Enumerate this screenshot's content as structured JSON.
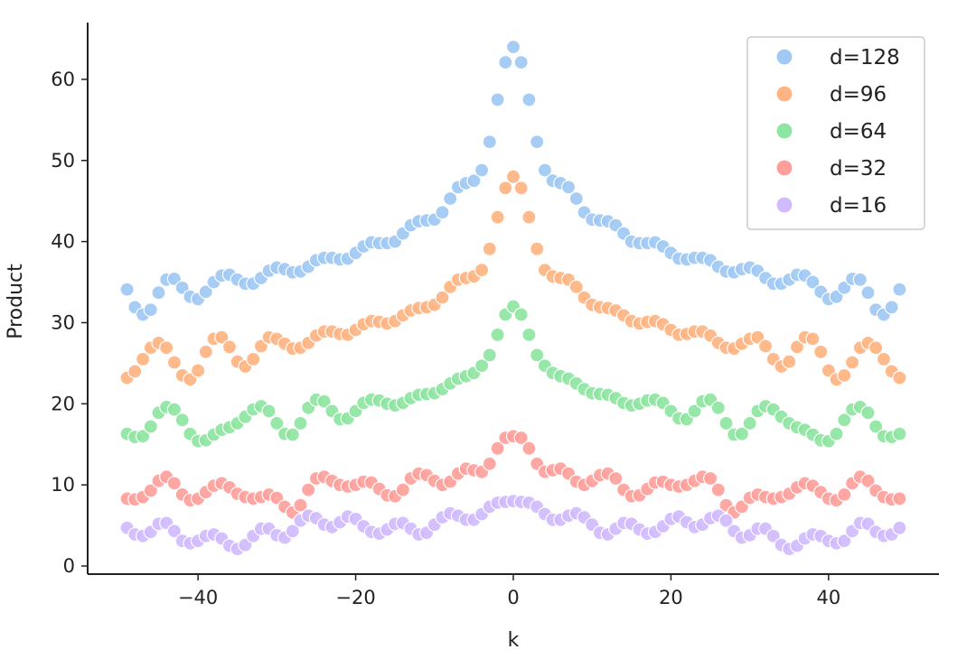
{
  "chart_data": {
    "type": "scatter",
    "title": "",
    "xlabel": "k",
    "ylabel": "Product",
    "xlim": [
      -54,
      54
    ],
    "ylim": [
      -1,
      67
    ],
    "xticks": [
      -40,
      -20,
      0,
      20,
      40
    ],
    "yticks": [
      0,
      10,
      20,
      30,
      40,
      50,
      60
    ],
    "grid": false,
    "legend_position": "top-right",
    "spines": "left-bottom",
    "x": [
      -49,
      -48,
      -47,
      -46,
      -45,
      -44,
      -43,
      -42,
      -41,
      -40,
      -39,
      -38,
      -37,
      -36,
      -35,
      -34,
      -33,
      -32,
      -31,
      -30,
      -29,
      -28,
      -27,
      -26,
      -25,
      -24,
      -23,
      -22,
      -21,
      -20,
      -19,
      -18,
      -17,
      -16,
      -15,
      -14,
      -13,
      -12,
      -11,
      -10,
      -9,
      -8,
      -7,
      -6,
      -5,
      -4,
      -3,
      -2,
      -1,
      0,
      1,
      2,
      3,
      4,
      5,
      6,
      7,
      8,
      9,
      10,
      11,
      12,
      13,
      14,
      15,
      16,
      17,
      18,
      19,
      20,
      21,
      22,
      23,
      24,
      25,
      26,
      27,
      28,
      29,
      30,
      31,
      32,
      33,
      34,
      35,
      36,
      37,
      38,
      39,
      40,
      41,
      42,
      43,
      44,
      45,
      46,
      47,
      48,
      49
    ],
    "series": [
      {
        "name": "d=128",
        "color": "#a1c9f4",
        "values": [
          34.1,
          31.9,
          31.0,
          31.6,
          33.7,
          35.3,
          35.4,
          34.3,
          33.2,
          32.9,
          33.8,
          35.0,
          35.8,
          35.9,
          35.3,
          34.8,
          34.8,
          35.5,
          36.4,
          36.8,
          36.6,
          36.2,
          36.3,
          36.9,
          37.7,
          38.0,
          38.0,
          37.8,
          37.9,
          38.6,
          39.4,
          39.9,
          39.8,
          39.8,
          40.0,
          41.0,
          42.0,
          42.5,
          42.6,
          42.7,
          43.6,
          45.3,
          46.7,
          47.2,
          47.5,
          48.8,
          52.3,
          57.5,
          62.1,
          64.0,
          62.1,
          57.5,
          52.3,
          48.8,
          47.5,
          47.2,
          46.7,
          45.3,
          43.6,
          42.7,
          42.6,
          42.5,
          42.0,
          41.0,
          40.0,
          39.8,
          39.8,
          39.9,
          39.4,
          38.6,
          37.9,
          37.8,
          38.0,
          38.0,
          37.7,
          36.9,
          36.3,
          36.2,
          36.6,
          36.8,
          36.4,
          35.5,
          34.8,
          34.8,
          35.3,
          35.9,
          35.8,
          35.0,
          33.8,
          32.9,
          33.2,
          34.3,
          35.4,
          35.3,
          33.7,
          31.6,
          31.0,
          31.9,
          34.1
        ]
      },
      {
        "name": "d=96",
        "color": "#ffb482",
        "values": [
          23.2,
          24.0,
          25.5,
          26.9,
          27.5,
          26.9,
          25.1,
          23.5,
          23.0,
          24.1,
          26.4,
          28.0,
          28.2,
          27.0,
          25.2,
          24.6,
          25.5,
          27.1,
          28.2,
          28.0,
          27.4,
          26.8,
          26.9,
          27.5,
          28.4,
          28.9,
          28.9,
          28.6,
          28.5,
          29.1,
          29.8,
          30.2,
          30.1,
          29.9,
          30.2,
          30.9,
          31.5,
          31.8,
          31.9,
          32.2,
          33.1,
          34.4,
          35.3,
          35.5,
          35.7,
          36.5,
          39.1,
          43.0,
          46.6,
          48.0,
          46.6,
          43.0,
          39.1,
          36.5,
          35.7,
          35.5,
          35.3,
          34.4,
          33.1,
          32.2,
          31.9,
          31.8,
          31.5,
          30.9,
          30.2,
          29.9,
          30.1,
          30.2,
          29.8,
          29.1,
          28.5,
          28.6,
          28.9,
          28.9,
          28.4,
          27.5,
          26.9,
          26.8,
          27.4,
          28.0,
          28.2,
          27.1,
          25.5,
          24.6,
          25.2,
          27.0,
          28.2,
          28.0,
          26.4,
          24.1,
          23.0,
          23.5,
          25.1,
          26.9,
          27.5,
          26.9,
          25.5,
          24.0,
          23.2
        ]
      },
      {
        "name": "d=64",
        "color": "#8de5a1",
        "values": [
          16.3,
          15.9,
          16.0,
          17.2,
          18.9,
          19.6,
          19.3,
          18.0,
          16.3,
          15.4,
          15.5,
          16.2,
          16.8,
          17.1,
          17.6,
          18.4,
          19.3,
          19.7,
          19.1,
          17.6,
          16.3,
          16.2,
          17.6,
          19.5,
          20.5,
          20.3,
          19.1,
          18.1,
          18.2,
          19.1,
          20.1,
          20.5,
          20.4,
          20.0,
          19.8,
          20.1,
          20.7,
          21.1,
          21.2,
          21.3,
          21.8,
          22.5,
          23.1,
          23.4,
          23.8,
          24.7,
          26.0,
          28.5,
          31.0,
          32.0,
          31.0,
          28.5,
          26.0,
          24.7,
          23.8,
          23.4,
          23.1,
          22.5,
          21.8,
          21.3,
          21.2,
          21.1,
          20.7,
          20.1,
          19.8,
          20.0,
          20.4,
          20.5,
          20.1,
          19.1,
          18.2,
          18.1,
          19.1,
          20.3,
          20.5,
          19.5,
          17.6,
          16.2,
          16.3,
          17.6,
          19.1,
          19.7,
          19.3,
          18.4,
          17.6,
          17.1,
          16.8,
          16.2,
          15.5,
          15.4,
          16.3,
          18.0,
          19.3,
          19.6,
          18.9,
          17.2,
          16.0,
          15.9,
          16.3
        ]
      },
      {
        "name": "d=32",
        "color": "#ff9f9b",
        "values": [
          8.3,
          8.2,
          8.5,
          9.3,
          10.5,
          11.0,
          10.2,
          8.8,
          8.1,
          8.3,
          9.1,
          9.9,
          10.2,
          9.7,
          8.9,
          8.5,
          8.3,
          8.5,
          8.8,
          8.4,
          7.3,
          6.6,
          7.5,
          9.4,
          10.8,
          11.0,
          10.5,
          10.0,
          9.8,
          10.0,
          10.4,
          10.3,
          9.5,
          8.7,
          8.6,
          9.4,
          10.8,
          11.4,
          11.2,
          10.5,
          10.0,
          10.4,
          11.4,
          12.0,
          11.8,
          11.6,
          12.6,
          14.5,
          15.8,
          16.0,
          15.8,
          14.5,
          12.6,
          11.6,
          11.8,
          12.0,
          11.4,
          10.4,
          10.0,
          10.5,
          11.2,
          11.4,
          10.8,
          9.4,
          8.6,
          8.7,
          9.5,
          10.3,
          10.4,
          10.0,
          9.8,
          10.0,
          10.5,
          11.0,
          10.8,
          9.4,
          7.5,
          6.6,
          7.3,
          8.4,
          8.8,
          8.5,
          8.3,
          8.5,
          8.9,
          9.7,
          10.2,
          9.9,
          9.1,
          8.3,
          8.1,
          8.8,
          10.2,
          11.0,
          10.5,
          9.3,
          8.5,
          8.2,
          8.3
        ]
      },
      {
        "name": "d=16",
        "color": "#d0bbff",
        "values": [
          4.7,
          3.9,
          3.7,
          4.2,
          5.2,
          5.3,
          4.3,
          3.1,
          2.8,
          3.1,
          3.7,
          3.9,
          3.4,
          2.5,
          2.1,
          2.6,
          3.7,
          4.6,
          4.6,
          3.8,
          3.5,
          4.3,
          5.6,
          6.2,
          5.9,
          5.1,
          4.8,
          5.4,
          6.1,
          5.8,
          4.9,
          4.2,
          4.0,
          4.5,
          5.2,
          5.3,
          4.6,
          3.9,
          4.1,
          5.1,
          6.0,
          6.5,
          6.2,
          5.7,
          5.7,
          6.4,
          7.3,
          7.8,
          7.9,
          8.0,
          7.9,
          7.8,
          7.3,
          6.4,
          5.7,
          5.7,
          6.2,
          6.5,
          6.0,
          5.1,
          4.1,
          3.9,
          4.6,
          5.3,
          5.2,
          4.5,
          4.0,
          4.2,
          4.9,
          5.8,
          6.1,
          5.4,
          4.8,
          5.1,
          5.9,
          6.2,
          5.6,
          4.3,
          3.5,
          3.8,
          4.6,
          4.6,
          3.7,
          2.6,
          2.1,
          2.5,
          3.4,
          3.9,
          3.7,
          3.1,
          2.8,
          3.1,
          4.3,
          5.3,
          5.2,
          4.2,
          3.7,
          3.9,
          4.7
        ]
      }
    ]
  }
}
